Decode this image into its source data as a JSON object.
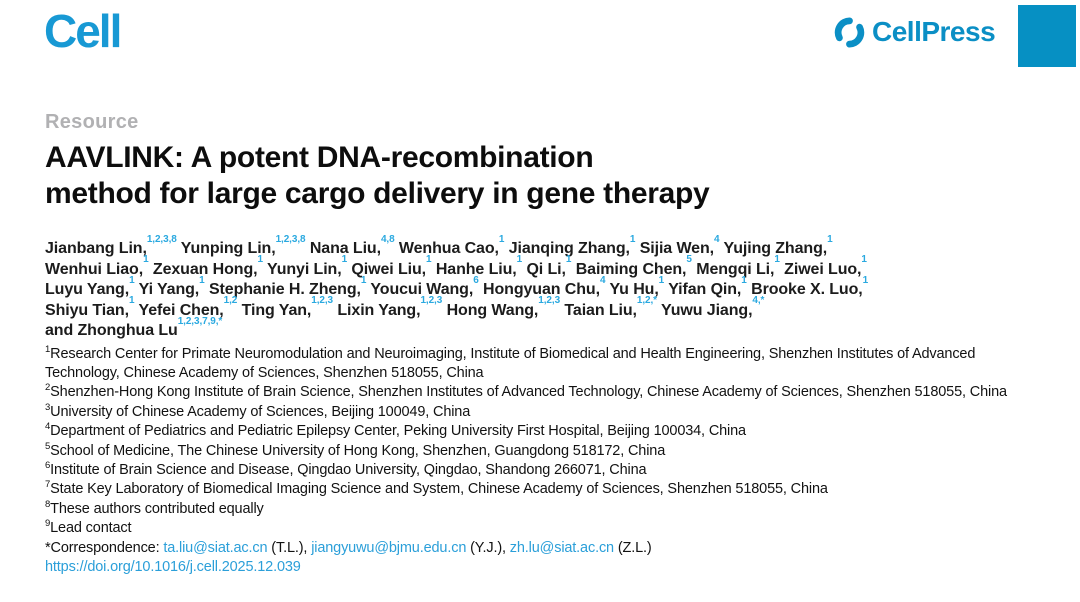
{
  "header": {
    "journal": "Cell",
    "publisher": "CellPress"
  },
  "article": {
    "category": "Resource",
    "title_lines": [
      "AAVLINK: A potent DNA-recombination",
      "method for large cargo delivery in gene therapy"
    ],
    "author_lines": [
      [
        {
          "name": "Jianbang Lin,",
          "sup": "1,2,3,8"
        },
        {
          "name": "Yunping Lin,",
          "sup": "1,2,3,8"
        },
        {
          "name": "Nana Liu,",
          "sup": "4,8"
        },
        {
          "name": "Wenhua Cao,",
          "sup": "1"
        },
        {
          "name": "Jianqing Zhang,",
          "sup": "1"
        },
        {
          "name": "Sijia Wen,",
          "sup": "4"
        },
        {
          "name": "Yujing Zhang,",
          "sup": "1"
        }
      ],
      [
        {
          "name": "Wenhui Liao,",
          "sup": "1"
        },
        {
          "name": "Zexuan Hong,",
          "sup": "1"
        },
        {
          "name": "Yunyi Lin,",
          "sup": "1"
        },
        {
          "name": "Qiwei Liu,",
          "sup": "1"
        },
        {
          "name": "Hanhe Liu,",
          "sup": "1"
        },
        {
          "name": "Qi Li,",
          "sup": "1"
        },
        {
          "name": "Baiming Chen,",
          "sup": "5"
        },
        {
          "name": "Mengqi Li,",
          "sup": "1"
        },
        {
          "name": "Ziwei Luo,",
          "sup": "1"
        }
      ],
      [
        {
          "name": "Luyu Yang,",
          "sup": "1"
        },
        {
          "name": "Yi Yang,",
          "sup": "1"
        },
        {
          "name": "Stephanie H. Zheng,",
          "sup": "1"
        },
        {
          "name": "Youcui Wang,",
          "sup": "6"
        },
        {
          "name": "Hongyuan Chu,",
          "sup": "4"
        },
        {
          "name": "Yu Hu,",
          "sup": "1"
        },
        {
          "name": "Yifan Qin,",
          "sup": "1"
        },
        {
          "name": "Brooke X. Luo,",
          "sup": "1"
        }
      ],
      [
        {
          "name": "Shiyu Tian,",
          "sup": "1"
        },
        {
          "name": "Yefei Chen,",
          "sup": "1,2"
        },
        {
          "name": "Ting Yan,",
          "sup": "1,2,3"
        },
        {
          "name": "Lixin Yang,",
          "sup": "1,2,3"
        },
        {
          "name": "Hong Wang,",
          "sup": "1,2,3"
        },
        {
          "name": "Taian Liu,",
          "sup": "1,2,*"
        },
        {
          "name": "Yuwu Jiang,",
          "sup": "4,*"
        }
      ],
      [
        {
          "name": "and Zhonghua Lu",
          "sup": "1,2,3,7,9,*"
        }
      ]
    ],
    "affiliations": [
      {
        "sup": "1",
        "text": "Research Center for Primate Neuromodulation and Neuroimaging, Institute of Biomedical and Health Engineering, Shenzhen Institutes of Advanced Technology, Chinese Academy of Sciences, Shenzhen 518055, China"
      },
      {
        "sup": "2",
        "text": "Shenzhen-Hong Kong Institute of Brain Science, Shenzhen Institutes of Advanced Technology, Chinese Academy of Sciences, Shenzhen 518055, China"
      },
      {
        "sup": "3",
        "text": "University of Chinese Academy of Sciences, Beijing 100049, China"
      },
      {
        "sup": "4",
        "text": "Department of Pediatrics and Pediatric Epilepsy Center, Peking University First Hospital, Beijing 100034, China"
      },
      {
        "sup": "5",
        "text": "School of Medicine, The Chinese University of Hong Kong, Shenzhen, Guangdong 518172, China"
      },
      {
        "sup": "6",
        "text": "Institute of Brain Science and Disease, Qingdao University, Qingdao, Shandong 266071, China"
      },
      {
        "sup": "7",
        "text": "State Key Laboratory of Biomedical Imaging Science and System, Chinese Academy of Sciences, Shenzhen 518055, China"
      },
      {
        "sup": "8",
        "text": "These authors contributed equally"
      },
      {
        "sup": "9",
        "text": "Lead contact"
      }
    ],
    "correspondence": [
      {
        "text": "*Correspondence: ",
        "link": false
      },
      {
        "text": "ta.liu@siat.ac.cn",
        "link": true
      },
      {
        "text": " (T.L.), ",
        "link": false
      },
      {
        "text": "jiangyuwu@bjmu.edu.cn",
        "link": true
      },
      {
        "text": " (Y.J.), ",
        "link": false
      },
      {
        "text": "zh.lu@siat.ac.cn",
        "link": true
      },
      {
        "text": " (Z.L.)",
        "link": false
      }
    ],
    "doi": "https://doi.org/10.1016/j.cell.2025.12.039"
  },
  "colors": {
    "journal_blue": "#1899d4",
    "press_blue": "#0b8fc5",
    "square_blue": "#0690c3",
    "link_blue": "#2b9fd9",
    "sup_blue": "#2aa9e0",
    "category_gray": "#b1b1b3"
  }
}
